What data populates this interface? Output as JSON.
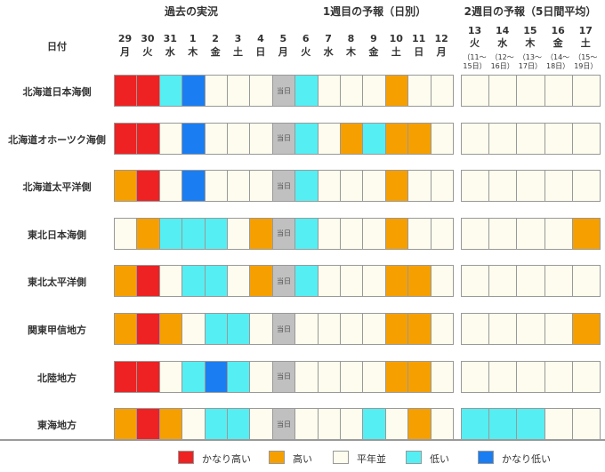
{
  "chart_data": {
    "type": "heatmap",
    "header": {
      "date_label": "日付",
      "past_title": "過去の実況",
      "week1_title": "1週目の予報（日別）",
      "week2_title": "2週目の予報（5日間平均）"
    },
    "days": [
      {
        "date": "29",
        "dow": "月",
        "period": "past"
      },
      {
        "date": "30",
        "dow": "火",
        "period": "past"
      },
      {
        "date": "31",
        "dow": "水",
        "period": "past"
      },
      {
        "date": "1",
        "dow": "木",
        "period": "past"
      },
      {
        "date": "2",
        "dow": "金",
        "period": "past"
      },
      {
        "date": "3",
        "dow": "土",
        "period": "past"
      },
      {
        "date": "4",
        "dow": "日",
        "period": "past"
      },
      {
        "date": "5",
        "dow": "月",
        "period": "today"
      },
      {
        "date": "6",
        "dow": "火",
        "period": "week1"
      },
      {
        "date": "7",
        "dow": "水",
        "period": "week1"
      },
      {
        "date": "8",
        "dow": "木",
        "period": "week1"
      },
      {
        "date": "9",
        "dow": "金",
        "period": "week1"
      },
      {
        "date": "10",
        "dow": "土",
        "period": "week1"
      },
      {
        "date": "11",
        "dow": "日",
        "period": "week1"
      },
      {
        "date": "12",
        "dow": "月",
        "period": "week1"
      }
    ],
    "week2_days": [
      {
        "date": "13",
        "dow": "火",
        "range": "（11〜15日）"
      },
      {
        "date": "14",
        "dow": "水",
        "range": "（12〜16日）"
      },
      {
        "date": "15",
        "dow": "木",
        "range": "（13〜17日）"
      },
      {
        "date": "16",
        "dow": "金",
        "range": "（14〜18日）"
      },
      {
        "date": "17",
        "dow": "土",
        "range": "（15〜19日）"
      }
    ],
    "today_text": "当日",
    "categories": {
      "VH": {
        "label": "かなり高い",
        "color": "#ee2222"
      },
      "H": {
        "label": "高い",
        "color": "#f5a000"
      },
      "N": {
        "label": "平年並",
        "color": "#fdfcee"
      },
      "L": {
        "label": "低い",
        "color": "#55eef2"
      },
      "VL": {
        "label": "かなり低い",
        "color": "#1a7ef2"
      },
      "T": {
        "label": "",
        "color": "#c0c0c0"
      }
    },
    "legend_order": [
      "VH",
      "H",
      "N",
      "L",
      "VL"
    ],
    "regions": [
      {
        "name": "北海道日本海側",
        "daily": [
          "VH",
          "VH",
          "L",
          "VL",
          "N",
          "N",
          "N",
          "T",
          "L",
          "N",
          "N",
          "N",
          "H",
          "N",
          "N"
        ],
        "week2": [
          "N",
          "N",
          "N",
          "N",
          "N"
        ]
      },
      {
        "name": "北海道オホーツク海側",
        "daily": [
          "VH",
          "VH",
          "N",
          "VL",
          "N",
          "N",
          "N",
          "T",
          "L",
          "N",
          "H",
          "L",
          "H",
          "H",
          "N"
        ],
        "week2": [
          "N",
          "N",
          "N",
          "N",
          "N"
        ]
      },
      {
        "name": "北海道太平洋側",
        "daily": [
          "H",
          "VH",
          "N",
          "VL",
          "N",
          "N",
          "N",
          "T",
          "L",
          "N",
          "N",
          "N",
          "H",
          "N",
          "N"
        ],
        "week2": [
          "N",
          "N",
          "N",
          "N",
          "N"
        ]
      },
      {
        "name": "東北日本海側",
        "daily": [
          "N",
          "H",
          "L",
          "L",
          "L",
          "N",
          "H",
          "T",
          "L",
          "N",
          "N",
          "N",
          "H",
          "N",
          "N"
        ],
        "week2": [
          "N",
          "N",
          "N",
          "N",
          "H"
        ]
      },
      {
        "name": "東北太平洋側",
        "daily": [
          "H",
          "VH",
          "N",
          "L",
          "L",
          "N",
          "H",
          "T",
          "L",
          "N",
          "N",
          "N",
          "H",
          "H",
          "N"
        ],
        "week2": [
          "N",
          "N",
          "N",
          "N",
          "N"
        ]
      },
      {
        "name": "関東甲信地方",
        "daily": [
          "H",
          "VH",
          "H",
          "N",
          "L",
          "L",
          "N",
          "T",
          "N",
          "N",
          "N",
          "N",
          "H",
          "H",
          "N"
        ],
        "week2": [
          "N",
          "N",
          "N",
          "N",
          "H"
        ]
      },
      {
        "name": "北陸地方",
        "daily": [
          "VH",
          "VH",
          "N",
          "L",
          "VL",
          "L",
          "N",
          "T",
          "N",
          "N",
          "N",
          "N",
          "H",
          "H",
          "N"
        ],
        "week2": [
          "N",
          "N",
          "N",
          "N",
          "N"
        ]
      },
      {
        "name": "東海地方",
        "daily": [
          "H",
          "VH",
          "H",
          "N",
          "L",
          "L",
          "N",
          "T",
          "N",
          "N",
          "N",
          "L",
          "N",
          "H",
          "N"
        ],
        "week2": [
          "L",
          "L",
          "L",
          "N",
          "N"
        ]
      }
    ]
  }
}
